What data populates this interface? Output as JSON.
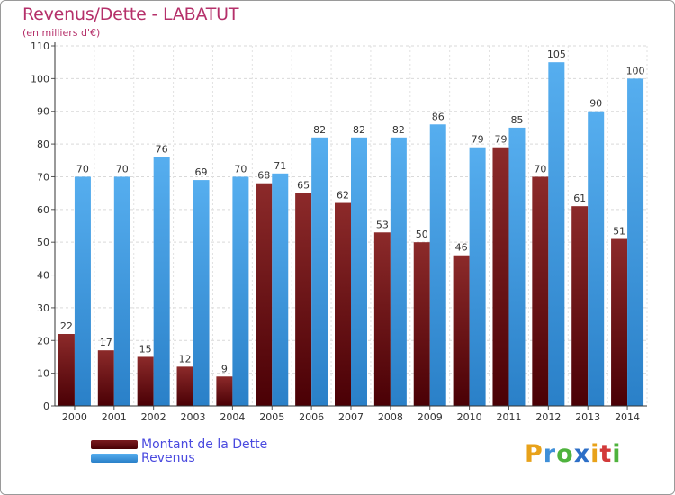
{
  "header": {
    "title": "Revenus/Dette - LABATUT",
    "subtitle": "(en milliers d'€)"
  },
  "legend": {
    "items": [
      {
        "label": "Montant de la Dette",
        "color": "#6b0d12"
      },
      {
        "label": "Revenus",
        "color": "#3d97df"
      }
    ]
  },
  "logo": {
    "letters": [
      "P",
      "r",
      "o",
      "x",
      "i",
      "t",
      "i"
    ],
    "colors": [
      "#e8a21a",
      "#3f8fd8",
      "#4fb33d",
      "#2d6fc7",
      "#e8a21a",
      "#d23a3a",
      "#4fb33d"
    ]
  },
  "chart_data": {
    "type": "bar",
    "categories": [
      "2000",
      "2001",
      "2002",
      "2003",
      "2004",
      "2005",
      "2006",
      "2007",
      "2008",
      "2009",
      "2010",
      "2011",
      "2012",
      "2013",
      "2014"
    ],
    "series": [
      {
        "name": "Montant de la Dette",
        "color": "#6b0d12",
        "values": [
          22,
          17,
          15,
          12,
          9,
          68,
          65,
          62,
          53,
          50,
          46,
          79,
          70,
          61,
          51
        ]
      },
      {
        "name": "Revenus",
        "color": "#3d97df",
        "values": [
          70,
          70,
          76,
          69,
          70,
          71,
          82,
          82,
          82,
          86,
          79,
          85,
          105,
          90,
          100
        ]
      }
    ],
    "ylim": [
      0,
      110
    ],
    "yticks": [
      0,
      10,
      20,
      30,
      40,
      50,
      60,
      70,
      80,
      90,
      100,
      110
    ],
    "grid": true,
    "legend_position": "bottom-left"
  }
}
